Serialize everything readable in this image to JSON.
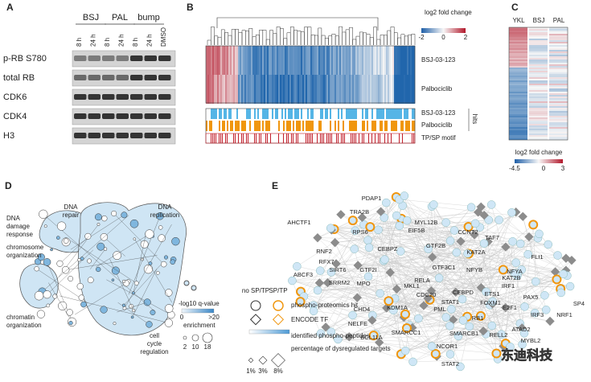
{
  "panel_a": {
    "letter": "A",
    "groups": [
      "BSJ",
      "PAL",
      "bump"
    ],
    "lanes": [
      "8 h",
      "24 h",
      "8 h",
      "24 h",
      "8 h",
      "24 h",
      "DMSO"
    ],
    "rows": [
      "p-RB S780",
      "total RB",
      "CDK6",
      "CDK4",
      "H3"
    ]
  },
  "panel_b": {
    "letter": "B",
    "colorbar_label": "log2 fold change",
    "colorbar_ticks": [
      "-2",
      "0",
      "2"
    ],
    "rows": [
      "BSJ-03-123",
      "Palbociclib"
    ],
    "hit_rows": [
      "BSJ-03-123",
      "Palbociclib"
    ],
    "hits_label": "hits",
    "motif_row": "TP/SP motif"
  },
  "panel_c": {
    "letter": "C",
    "columns": [
      "YKL",
      "BSJ",
      "PAL"
    ],
    "colorbar_label": "log2 fold change",
    "colorbar_ticks": [
      "-4.5",
      "0",
      "3"
    ]
  },
  "panel_d": {
    "letter": "D",
    "clusters": [
      "DNA repair",
      "DNA replication",
      "DNA damage response",
      "chromosome organization",
      "chromatin organization",
      "cell cycle regulation"
    ],
    "legend_title": "-log10 q-value",
    "legend_ticks": [
      "0",
      ">20"
    ],
    "size_title": "enrichment",
    "size_ticks": [
      "2",
      "10",
      "18"
    ]
  },
  "panel_e": {
    "letter": "E",
    "nodes": [
      "PDAP1",
      "TRA2B",
      "AHCTF1",
      "RPS6",
      "MYL12B",
      "EIF5B",
      "CCNT2",
      "TAF7",
      "GTF2B",
      "KAT2A",
      "RNF2",
      "CEBPZ",
      "RFX7",
      "SIRT6",
      "GTF2I",
      "GTF3C1",
      "NFYB",
      "NFYA",
      "FLI1",
      "KAT2B",
      "IRF1",
      "ABCF3",
      "SRRM2",
      "MPO",
      "RELA",
      "MKL1",
      "CEBPD",
      "ETS1",
      "CHD4",
      "KDM1A",
      "CDC20",
      "STAT1",
      "PML",
      "E2F1",
      "FOXM1",
      "PAX5",
      "SP4",
      "NRF1",
      "NELFE",
      "RB1",
      "SMARCC1",
      "SMARCB1",
      "RELL2",
      "ATAD2",
      "MYBL2",
      "IRF3",
      "BCL11A",
      "NCOR1",
      "STAT2"
    ],
    "legend": {
      "no_sptp": "no SP/TP",
      "sptp": "SP/TP",
      "phospho_hit": "phospho-proteomics hit",
      "encode": "ENCODE TF",
      "identified": "identified phospho-peptides",
      "percentage": "percentage of dysregulated targets",
      "size_ticks": [
        "1%",
        "3%",
        "8%"
      ]
    }
  },
  "watermark": "东迪科技"
}
